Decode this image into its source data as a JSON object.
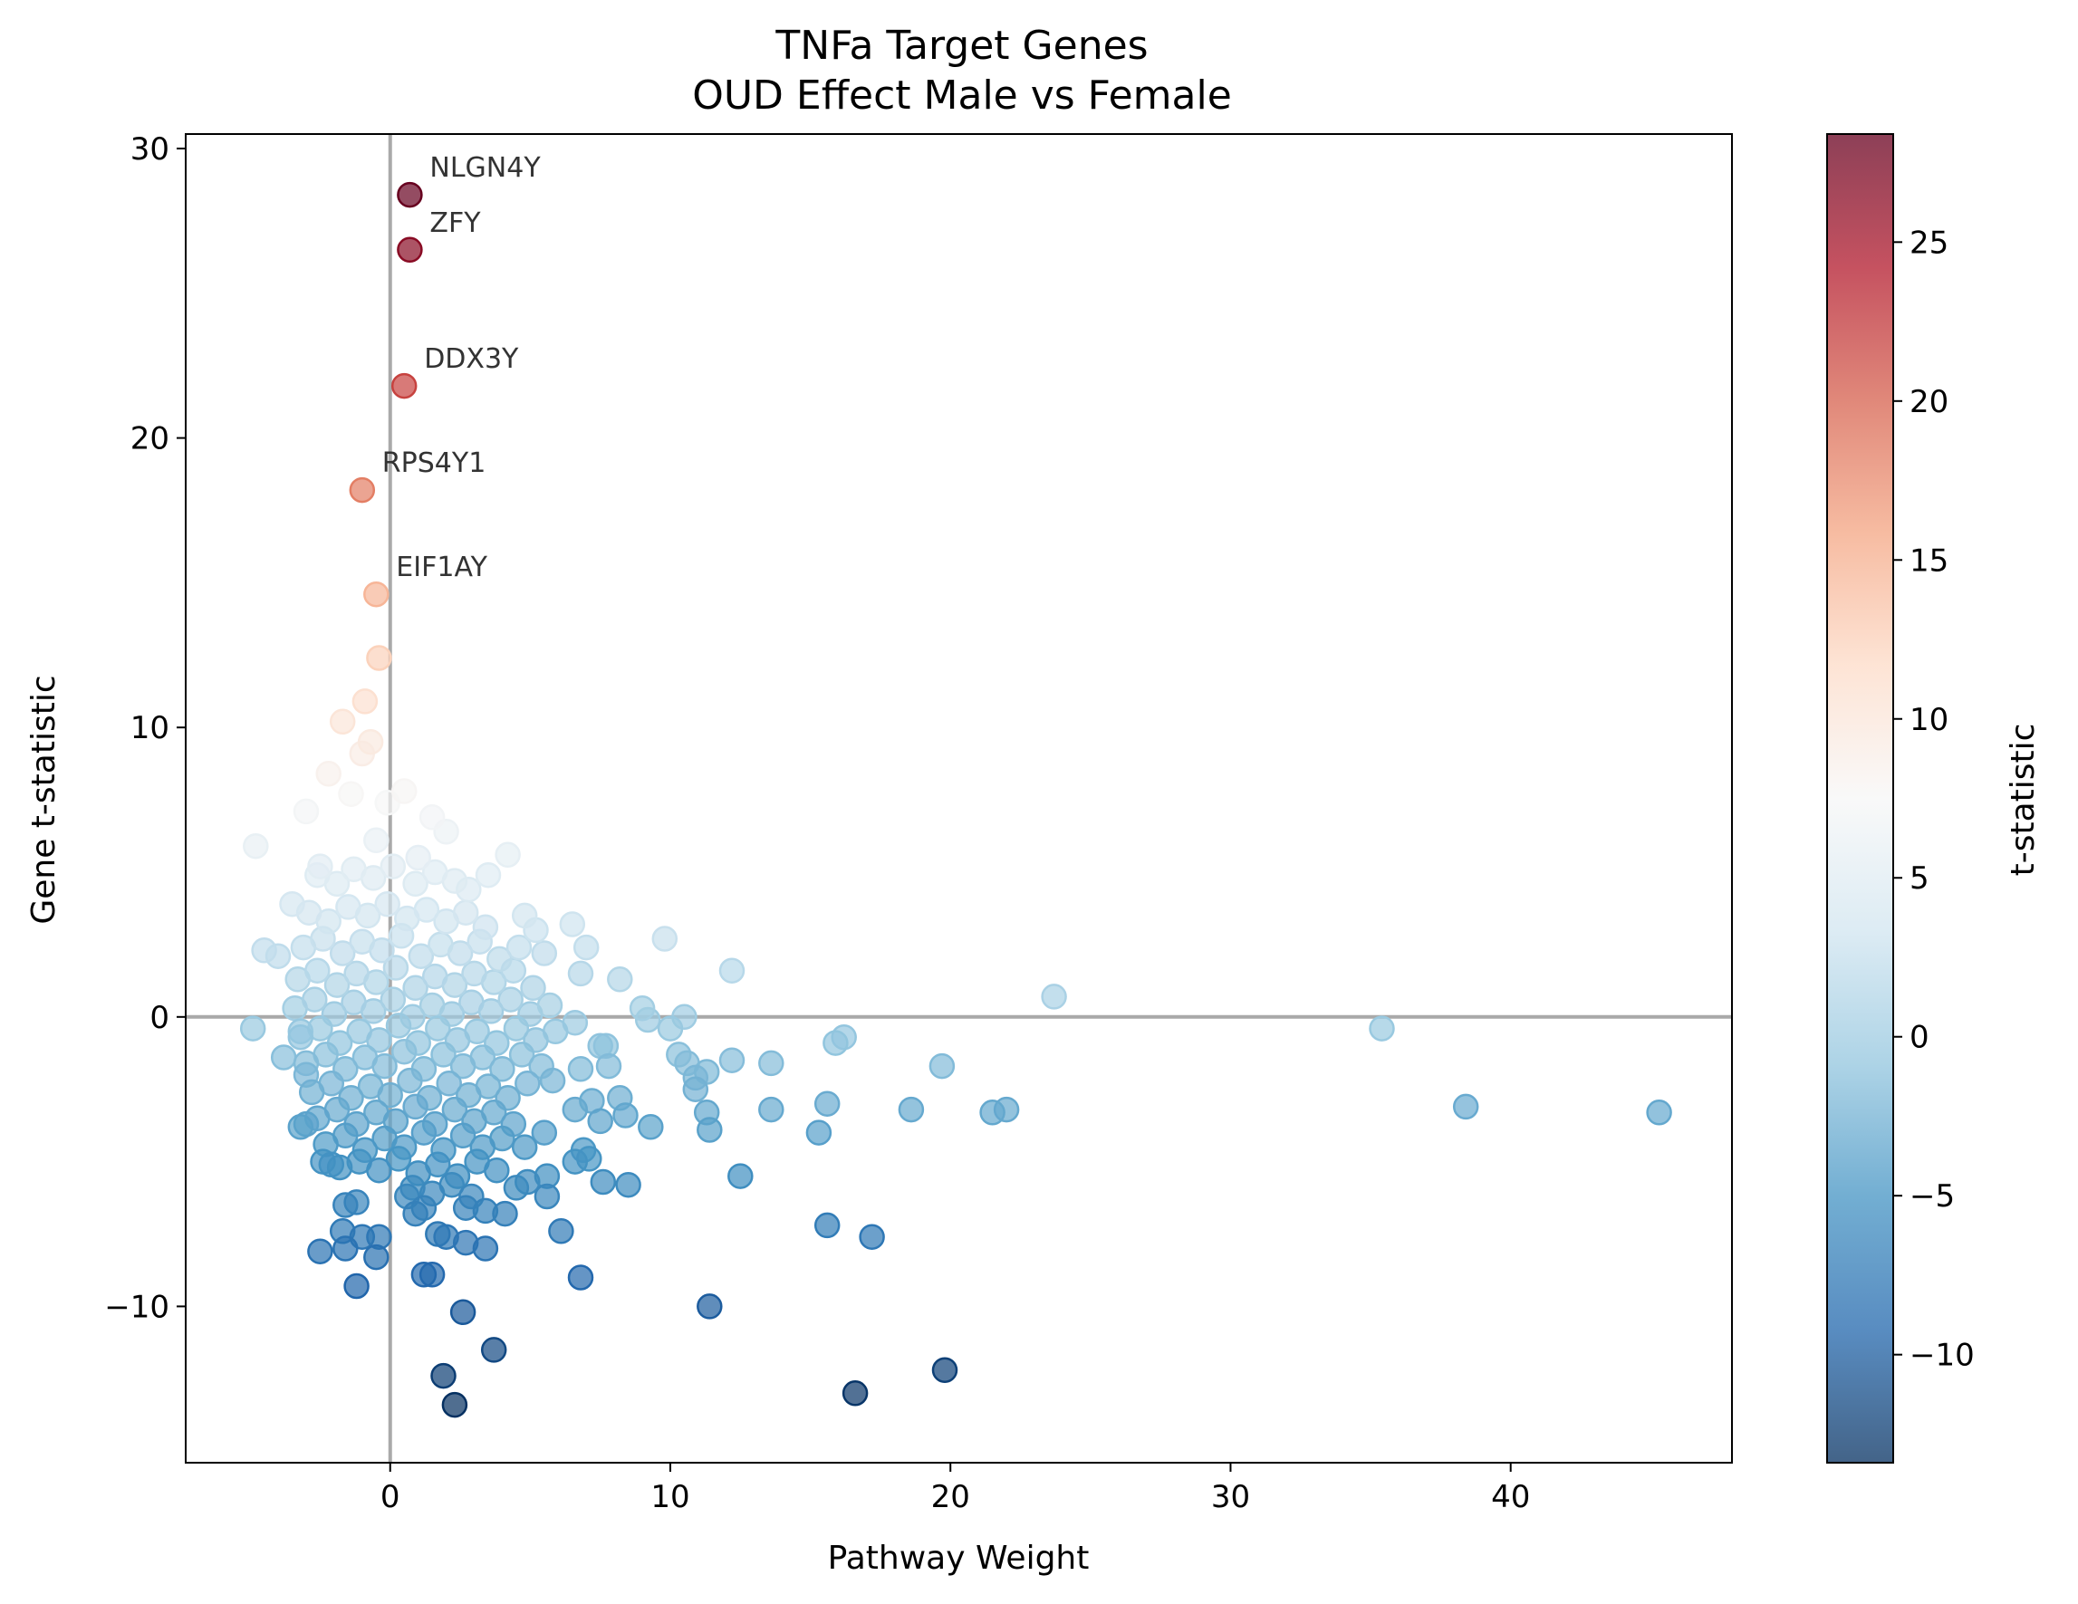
{
  "chart_data": {
    "type": "scatter",
    "title": "TNFa Target Genes",
    "subtitle": "OUD Effect Male vs Female",
    "xlabel": "Pathway Weight",
    "ylabel": "Gene t-statistic",
    "xlim": [
      -7.3,
      47.9
    ],
    "ylim": [
      -15.4,
      30.5
    ],
    "xticks": [
      0,
      10,
      20,
      30,
      40
    ],
    "yticks": [
      -10,
      0,
      10,
      20,
      30
    ],
    "grid": false,
    "reference_lines": {
      "x": 0,
      "y": 0
    },
    "colorbar": {
      "label": "t-statistic",
      "range": [
        -13.4,
        28.4
      ],
      "ticks": [
        -10,
        -5,
        0,
        5,
        10,
        15,
        20,
        25
      ],
      "colormap": "RdBu_r",
      "colors": [
        "#053061",
        "#2166ac",
        "#4393c3",
        "#92c5de",
        "#d1e5f0",
        "#f7f7f7",
        "#fddbc7",
        "#f4a582",
        "#d6604d",
        "#b2182b",
        "#67001f"
      ]
    },
    "annotations": [
      {
        "label": "NLGN4Y",
        "x": 0.7,
        "y": 28.4
      },
      {
        "label": "ZFY",
        "x": 0.7,
        "y": 26.5
      },
      {
        "label": "DDX3Y",
        "x": 0.5,
        "y": 21.8
      },
      {
        "label": "RPS4Y1",
        "x": -1.0,
        "y": 18.2
      },
      {
        "label": "EIF1AY",
        "x": -0.5,
        "y": 14.6
      }
    ],
    "points": [
      [
        0.7,
        28.4
      ],
      [
        0.7,
        26.5
      ],
      [
        0.5,
        21.8
      ],
      [
        -1.0,
        18.2
      ],
      [
        -0.5,
        14.6
      ],
      [
        -0.4,
        12.4
      ],
      [
        -0.9,
        10.9
      ],
      [
        -1.7,
        10.2
      ],
      [
        -0.7,
        9.5
      ],
      [
        -2.2,
        8.4
      ],
      [
        -1.0,
        9.1
      ],
      [
        -0.1,
        7.4
      ],
      [
        0.5,
        7.8
      ],
      [
        -1.4,
        7.7
      ],
      [
        -3.0,
        7.1
      ],
      [
        1.5,
        6.9
      ],
      [
        2.0,
        6.4
      ],
      [
        -4.8,
        5.9
      ],
      [
        4.2,
        5.6
      ],
      [
        3.5,
        4.9
      ],
      [
        1.0,
        5.5
      ],
      [
        -0.5,
        6.1
      ],
      [
        -2.5,
        5.2
      ],
      [
        2.8,
        4.4
      ],
      [
        -3.5,
        3.9
      ],
      [
        4.8,
        3.5
      ],
      [
        5.2,
        3.0
      ],
      [
        -4.5,
        2.3
      ],
      [
        -4.0,
        2.1
      ],
      [
        6.5,
        3.2
      ],
      [
        7.0,
        2.4
      ],
      [
        9.8,
        2.7
      ],
      [
        5.5,
        2.2
      ],
      [
        6.8,
        1.5
      ],
      [
        8.2,
        1.3
      ],
      [
        12.2,
        1.6
      ],
      [
        23.7,
        0.7
      ],
      [
        9.0,
        0.3
      ],
      [
        10.5,
        0.0
      ],
      [
        9.2,
        -0.1
      ],
      [
        10.0,
        -0.4
      ],
      [
        6.6,
        -0.2
      ],
      [
        35.4,
        -0.4
      ],
      [
        -4.9,
        -0.4
      ],
      [
        -3.2,
        -0.5
      ],
      [
        16.2,
        -0.7
      ],
      [
        15.9,
        -0.9
      ],
      [
        7.5,
        -1.0
      ],
      [
        7.7,
        -1.0
      ],
      [
        -3.8,
        -1.4
      ],
      [
        10.3,
        -1.3
      ],
      [
        10.6,
        -1.6
      ],
      [
        12.2,
        -1.5
      ],
      [
        13.6,
        -1.6
      ],
      [
        19.7,
        -1.7
      ],
      [
        11.3,
        -1.9
      ],
      [
        7.8,
        -1.7
      ],
      [
        6.8,
        -1.8
      ],
      [
        10.9,
        -2.1
      ],
      [
        5.8,
        -2.2
      ],
      [
        -3.0,
        -2.0
      ],
      [
        10.9,
        -2.5
      ],
      [
        8.2,
        -2.8
      ],
      [
        7.2,
        -2.9
      ],
      [
        15.6,
        -3.0
      ],
      [
        38.4,
        -3.1
      ],
      [
        22.0,
        -3.2
      ],
      [
        21.5,
        -3.3
      ],
      [
        45.3,
        -3.3
      ],
      [
        18.6,
        -3.2
      ],
      [
        13.6,
        -3.2
      ],
      [
        11.3,
        -3.3
      ],
      [
        8.4,
        -3.4
      ],
      [
        6.6,
        -3.2
      ],
      [
        7.5,
        -3.6
      ],
      [
        9.3,
        -3.8
      ],
      [
        11.4,
        -3.9
      ],
      [
        15.3,
        -4.0
      ],
      [
        -3.0,
        -3.7
      ],
      [
        -3.2,
        -3.8
      ],
      [
        5.5,
        -4.0
      ],
      [
        4.8,
        -4.5
      ],
      [
        6.9,
        -4.6
      ],
      [
        7.1,
        -4.9
      ],
      [
        6.6,
        -5.0
      ],
      [
        -2.4,
        -5.0
      ],
      [
        -2.1,
        -5.1
      ],
      [
        12.5,
        -5.5
      ],
      [
        5.6,
        -5.5
      ],
      [
        7.6,
        -5.7
      ],
      [
        8.5,
        -5.8
      ],
      [
        4.9,
        -5.7
      ],
      [
        4.5,
        -5.9
      ],
      [
        5.6,
        -6.2
      ],
      [
        0.6,
        -6.2
      ],
      [
        1.2,
        -6.6
      ],
      [
        0.9,
        -6.8
      ],
      [
        -1.2,
        -6.4
      ],
      [
        -1.6,
        -6.5
      ],
      [
        4.1,
        -6.8
      ],
      [
        3.4,
        -6.7
      ],
      [
        2.7,
        -6.6
      ],
      [
        15.6,
        -7.2
      ],
      [
        6.1,
        -7.4
      ],
      [
        17.2,
        -7.6
      ],
      [
        -1.7,
        -7.4
      ],
      [
        -1.0,
        -7.6
      ],
      [
        -0.4,
        -7.6
      ],
      [
        1.7,
        -7.5
      ],
      [
        2.0,
        -7.6
      ],
      [
        2.7,
        -7.8
      ],
      [
        3.4,
        -8.0
      ],
      [
        -1.6,
        -8.0
      ],
      [
        -2.5,
        -8.1
      ],
      [
        -0.5,
        -8.3
      ],
      [
        1.2,
        -8.9
      ],
      [
        1.5,
        -8.9
      ],
      [
        6.8,
        -9.0
      ],
      [
        -1.2,
        -9.3
      ],
      [
        11.4,
        -10.0
      ],
      [
        2.6,
        -10.2
      ],
      [
        3.7,
        -11.5
      ],
      [
        19.8,
        -12.2
      ],
      [
        1.9,
        -12.4
      ],
      [
        16.6,
        -13.0
      ],
      [
        2.3,
        -13.4
      ],
      [
        -2.6,
        4.9
      ],
      [
        -1.9,
        4.6
      ],
      [
        -1.3,
        5.1
      ],
      [
        -0.6,
        4.8
      ],
      [
        0.1,
        5.2
      ],
      [
        0.9,
        4.6
      ],
      [
        1.6,
        5.0
      ],
      [
        2.3,
        4.7
      ],
      [
        -2.9,
        3.6
      ],
      [
        -2.2,
        3.3
      ],
      [
        -1.5,
        3.8
      ],
      [
        -0.8,
        3.5
      ],
      [
        -0.1,
        3.9
      ],
      [
        0.6,
        3.4
      ],
      [
        1.3,
        3.7
      ],
      [
        2.0,
        3.3
      ],
      [
        2.7,
        3.6
      ],
      [
        3.4,
        3.1
      ],
      [
        -3.1,
        2.4
      ],
      [
        -2.4,
        2.7
      ],
      [
        -1.7,
        2.2
      ],
      [
        -1.0,
        2.6
      ],
      [
        -0.3,
        2.3
      ],
      [
        0.4,
        2.8
      ],
      [
        1.1,
        2.1
      ],
      [
        1.8,
        2.5
      ],
      [
        2.5,
        2.2
      ],
      [
        3.2,
        2.6
      ],
      [
        3.9,
        2.0
      ],
      [
        4.6,
        2.4
      ],
      [
        -3.3,
        1.3
      ],
      [
        -2.6,
        1.6
      ],
      [
        -1.9,
        1.1
      ],
      [
        -1.2,
        1.5
      ],
      [
        -0.5,
        1.2
      ],
      [
        0.2,
        1.7
      ],
      [
        0.9,
        1.0
      ],
      [
        1.6,
        1.4
      ],
      [
        2.3,
        1.1
      ],
      [
        3.0,
        1.5
      ],
      [
        3.7,
        1.2
      ],
      [
        4.4,
        1.6
      ],
      [
        5.1,
        1.0
      ],
      [
        -3.4,
        0.3
      ],
      [
        -2.7,
        0.6
      ],
      [
        -2.0,
        0.1
      ],
      [
        -1.3,
        0.5
      ],
      [
        -0.6,
        0.2
      ],
      [
        0.1,
        0.6
      ],
      [
        0.8,
        0.0
      ],
      [
        1.5,
        0.4
      ],
      [
        2.2,
        0.1
      ],
      [
        2.9,
        0.5
      ],
      [
        3.6,
        0.2
      ],
      [
        4.3,
        0.6
      ],
      [
        5.0,
        0.1
      ],
      [
        5.7,
        0.4
      ],
      [
        -3.2,
        -0.7
      ],
      [
        -2.5,
        -0.4
      ],
      [
        -1.8,
        -0.9
      ],
      [
        -1.1,
        -0.5
      ],
      [
        -0.4,
        -0.8
      ],
      [
        0.3,
        -0.3
      ],
      [
        1.0,
        -0.9
      ],
      [
        1.7,
        -0.4
      ],
      [
        2.4,
        -0.8
      ],
      [
        3.1,
        -0.5
      ],
      [
        3.8,
        -0.9
      ],
      [
        4.5,
        -0.4
      ],
      [
        5.2,
        -0.8
      ],
      [
        5.9,
        -0.5
      ],
      [
        -3.0,
        -1.6
      ],
      [
        -2.3,
        -1.3
      ],
      [
        -1.6,
        -1.8
      ],
      [
        -0.9,
        -1.4
      ],
      [
        -0.2,
        -1.7
      ],
      [
        0.5,
        -1.2
      ],
      [
        1.2,
        -1.8
      ],
      [
        1.9,
        -1.3
      ],
      [
        2.6,
        -1.7
      ],
      [
        3.3,
        -1.4
      ],
      [
        4.0,
        -1.8
      ],
      [
        4.7,
        -1.3
      ],
      [
        5.4,
        -1.7
      ],
      [
        -2.8,
        -2.6
      ],
      [
        -2.1,
        -2.3
      ],
      [
        -1.4,
        -2.8
      ],
      [
        -0.7,
        -2.4
      ],
      [
        0.0,
        -2.7
      ],
      [
        0.7,
        -2.2
      ],
      [
        1.4,
        -2.8
      ],
      [
        2.1,
        -2.3
      ],
      [
        2.8,
        -2.7
      ],
      [
        3.5,
        -2.4
      ],
      [
        4.2,
        -2.8
      ],
      [
        4.9,
        -2.3
      ],
      [
        -2.6,
        -3.5
      ],
      [
        -1.9,
        -3.2
      ],
      [
        -1.2,
        -3.7
      ],
      [
        -0.5,
        -3.3
      ],
      [
        0.2,
        -3.6
      ],
      [
        0.9,
        -3.1
      ],
      [
        1.6,
        -3.7
      ],
      [
        2.3,
        -3.2
      ],
      [
        3.0,
        -3.6
      ],
      [
        3.7,
        -3.3
      ],
      [
        4.4,
        -3.7
      ],
      [
        -2.3,
        -4.4
      ],
      [
        -1.6,
        -4.1
      ],
      [
        -0.9,
        -4.6
      ],
      [
        -0.2,
        -4.2
      ],
      [
        0.5,
        -4.5
      ],
      [
        1.2,
        -4.0
      ],
      [
        1.9,
        -4.6
      ],
      [
        2.6,
        -4.1
      ],
      [
        3.3,
        -4.5
      ],
      [
        4.0,
        -4.2
      ],
      [
        -1.8,
        -5.2
      ],
      [
        -1.1,
        -5.0
      ],
      [
        -0.4,
        -5.3
      ],
      [
        0.3,
        -4.9
      ],
      [
        1.0,
        -5.4
      ],
      [
        1.7,
        -5.1
      ],
      [
        2.4,
        -5.5
      ],
      [
        3.1,
        -5.0
      ],
      [
        3.8,
        -5.3
      ],
      [
        0.8,
        -5.9
      ],
      [
        1.5,
        -6.1
      ],
      [
        2.2,
        -5.8
      ],
      [
        2.9,
        -6.2
      ]
    ]
  }
}
